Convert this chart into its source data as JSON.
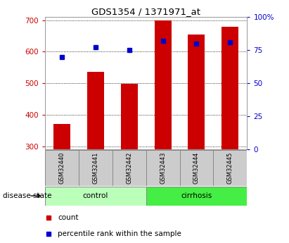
{
  "title": "GDS1354 / 1371971_at",
  "samples": [
    "GSM32440",
    "GSM32441",
    "GSM32442",
    "GSM32443",
    "GSM32444",
    "GSM32445"
  ],
  "bar_values": [
    370,
    535,
    498,
    700,
    655,
    680
  ],
  "percentile_values": [
    70,
    77,
    75,
    82,
    80,
    81
  ],
  "bar_bottom": 290,
  "ylim_left": [
    290,
    710
  ],
  "ylim_right": [
    0,
    100
  ],
  "yticks_left": [
    300,
    400,
    500,
    600,
    700
  ],
  "yticks_right": [
    0,
    25,
    50,
    75,
    100
  ],
  "bar_color": "#cc0000",
  "percentile_color": "#0000cc",
  "control_color": "#bbffbb",
  "cirrhosis_color": "#44ee44",
  "label_bg_color": "#cccccc",
  "bar_width": 0.5,
  "disease_label": "disease state",
  "legend_count": "count",
  "legend_percentile": "percentile rank within the sample",
  "bg_color": "#ffffff"
}
